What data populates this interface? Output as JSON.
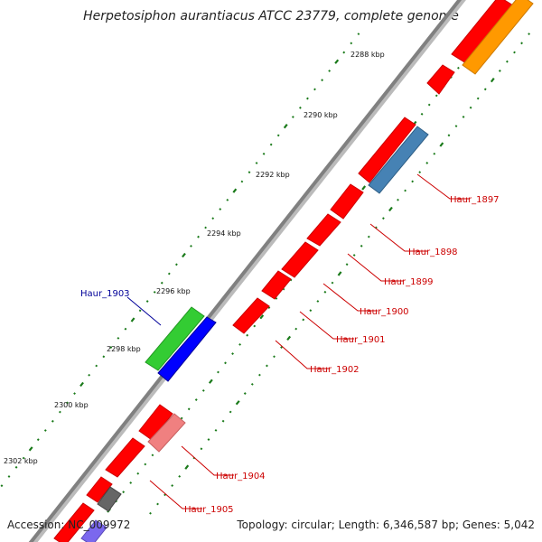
{
  "title": "Herpetosiphon aurantiacus ATCC 23779, complete genome",
  "accession": "Accession: NC_009972",
  "topology": "Topology: circular; Length: 6,346,587 bp; Genes: 5,042",
  "colors": {
    "backbone": "#888888",
    "ticks": "#1a7a1a",
    "gene_red": "#ff0000",
    "gene_orange": "#ff9900",
    "gene_steelblue": "#4682b4",
    "gene_green": "#33cc33",
    "gene_blue": "#0000ff",
    "gene_pink": "#f08080",
    "gene_gray": "#666666",
    "gene_lavender": "#7b68ee",
    "label_red": "#cc0000",
    "label_blue": "#000099"
  },
  "scale_labels": [
    "2288 kbp",
    "2290 kbp",
    "2292 kbp",
    "2294 kbp",
    "2296 kbp",
    "2298 kbp",
    "2300 kbp",
    "2302 kbp"
  ],
  "gene_labels": [
    {
      "name": "Haur_1897",
      "color": "red"
    },
    {
      "name": "Haur_1898",
      "color": "red"
    },
    {
      "name": "Haur_1899",
      "color": "red"
    },
    {
      "name": "Haur_1900",
      "color": "red"
    },
    {
      "name": "Haur_1901",
      "color": "red"
    },
    {
      "name": "Haur_1902",
      "color": "red"
    },
    {
      "name": "Haur_1903",
      "color": "blue"
    },
    {
      "name": "Haur_1904",
      "color": "red"
    },
    {
      "name": "Haur_1905",
      "color": "red"
    }
  ]
}
